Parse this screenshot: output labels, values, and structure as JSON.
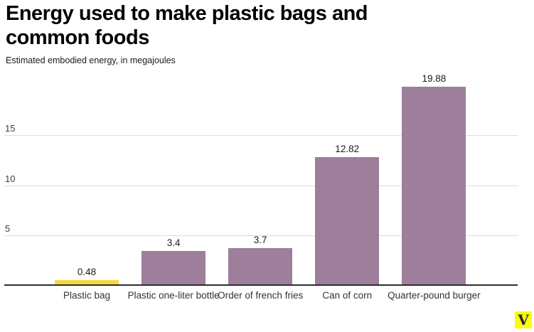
{
  "header": {
    "title": "Energy used to make plastic bags and common foods",
    "title_lines": [
      "Energy used to make plastic bags and",
      "common foods"
    ],
    "subtitle": "Estimated embodied energy, in megajoules"
  },
  "chart_data": {
    "type": "bar",
    "title": "Energy used to make plastic bags and common foods",
    "ylabel": "Estimated embodied energy, in megajoules",
    "xlabel": "",
    "categories": [
      "Plastic bag",
      "Plastic one-liter bottle",
      "Order of french fries",
      "Can of corn",
      "Quarter-pound burger"
    ],
    "values": [
      0.48,
      3.4,
      3.7,
      12.82,
      19.88
    ],
    "value_labels": [
      "0.48",
      "3.4",
      "3.7",
      "12.82",
      "19.88"
    ],
    "bar_colors": [
      "#f7d73e",
      "#9d7e9b",
      "#9d7e9b",
      "#9d7e9b",
      "#9d7e9b"
    ],
    "highlight_color": "#f7d73e",
    "default_color": "#9d7e9b",
    "grid": true,
    "grid_color": "#dddddd",
    "axis_color": "#2d2d2d",
    "yticks": [
      5,
      10,
      15
    ],
    "ylim": [
      0,
      21
    ],
    "legend": "none"
  },
  "footer": {
    "logo_letter": "V",
    "logo_bg": "#fdfd0a",
    "logo_fg": "#232349"
  }
}
